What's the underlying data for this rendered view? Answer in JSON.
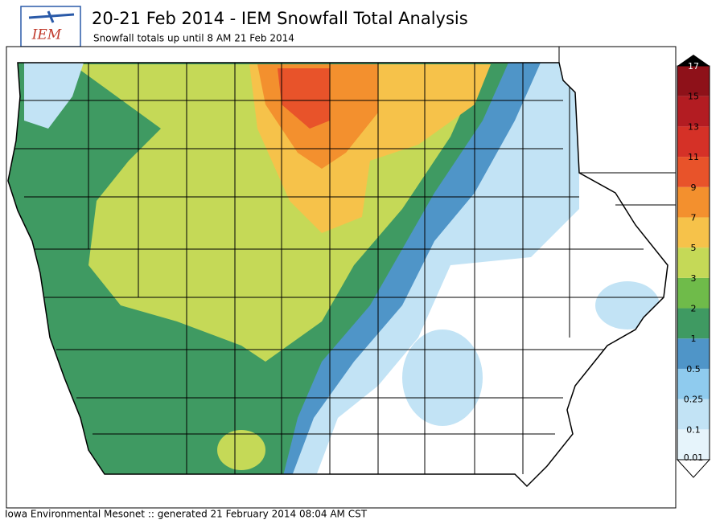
{
  "header": {
    "title": "20-21 Feb 2014 - IEM Snowfall Total Analysis",
    "subtitle": "Snowfall totals up until 8 AM 21 Feb 2014",
    "logo_text": "IEM"
  },
  "legend": {
    "levels": [
      0.01,
      0.1,
      0.25,
      0.5,
      1,
      2,
      3,
      5,
      7,
      9,
      11,
      13,
      15,
      17
    ],
    "colors": [
      "#e6f4fb",
      "#c2e3f5",
      "#8fcbee",
      "#4f95c8",
      "#3f9a62",
      "#6fbb4a",
      "#c5d957",
      "#f6c24a",
      "#f3902e",
      "#e8532a",
      "#d53127",
      "#b31c22",
      "#8e1119"
    ]
  },
  "footer": "Iowa Environmental Mesonet :: generated 21 February 2014 08:04 AM CST"
}
